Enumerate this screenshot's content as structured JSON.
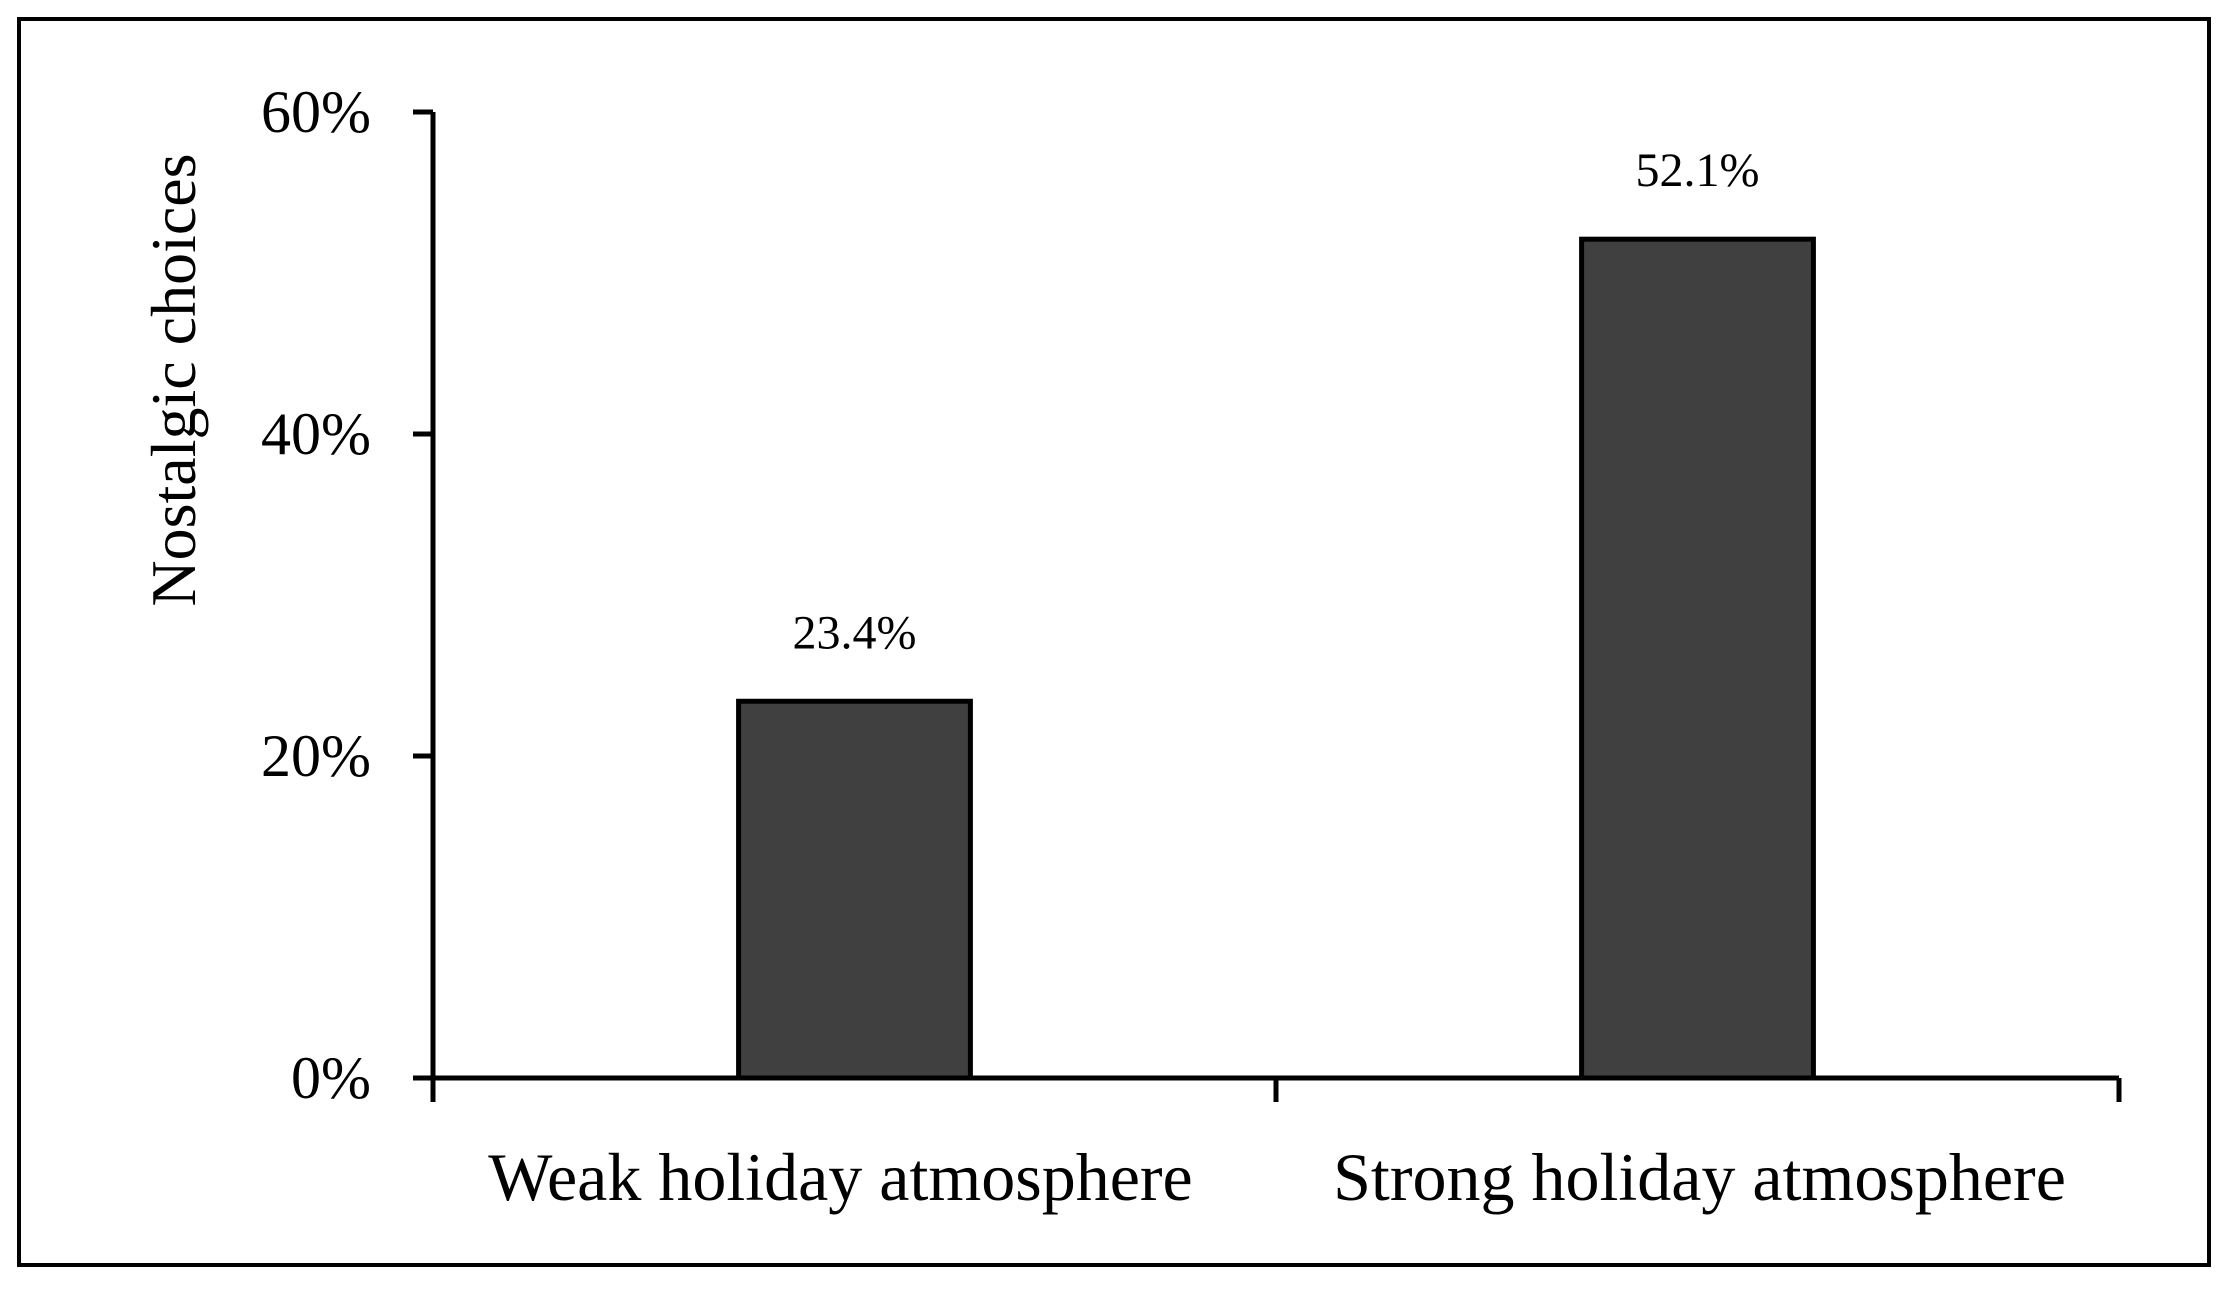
{
  "chart_data": {
    "type": "bar",
    "categories": [
      "Weak holiday atmosphere",
      "Strong holiday atmosphere"
    ],
    "values": [
      23.4,
      52.1
    ],
    "data_labels": [
      "23.4%",
      "52.1%"
    ],
    "title": "",
    "xlabel": "",
    "ylabel": "Nostalgic choices",
    "ylim": [
      0,
      60
    ],
    "yticks": [
      0,
      20,
      40,
      60
    ],
    "ytick_labels": [
      "0%",
      "20%",
      "40%",
      "60%"
    ],
    "grid": false,
    "legend": "none",
    "bar_color": "#404040",
    "bar_edge_color": "#000000"
  }
}
